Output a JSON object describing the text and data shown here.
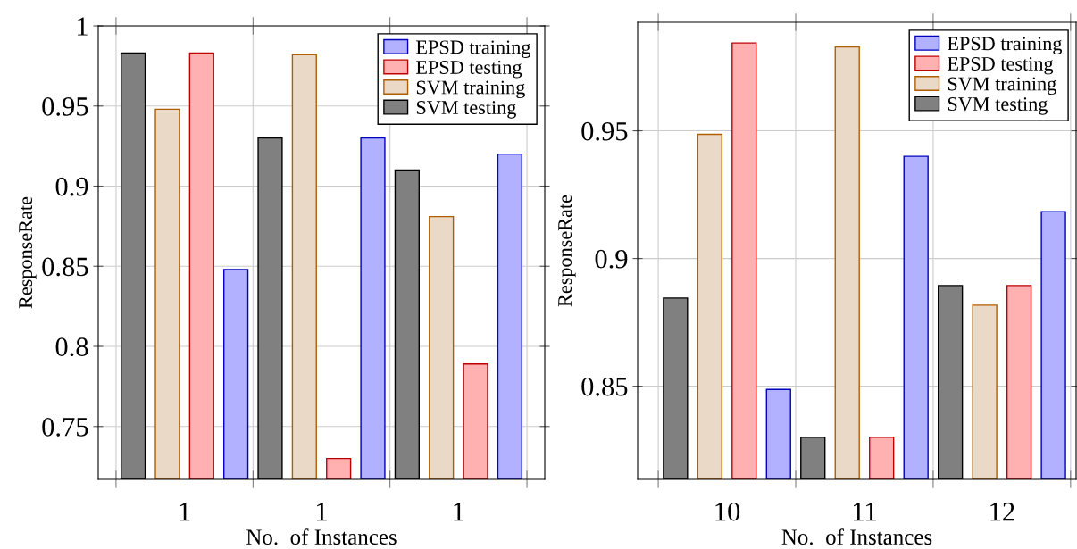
{
  "chart_data": [
    {
      "type": "bar",
      "xlabel": "No.  of Instances",
      "ylabel": "ResponseRate",
      "categories": [
        "1",
        "1",
        "1"
      ],
      "series": [
        {
          "name": "EPSD training",
          "color": "#b1b1ff",
          "values": [
            0.848,
            0.93,
            0.92
          ]
        },
        {
          "name": "EPSD testing",
          "color": "#ffb1b1",
          "values": [
            0.983,
            0.73,
            0.789
          ]
        },
        {
          "name": "SVM training",
          "color": "#ead9c6",
          "values": [
            0.948,
            0.982,
            0.881
          ]
        },
        {
          "name": "SVM testing",
          "color": "#808080",
          "values": [
            0.983,
            0.93,
            0.91
          ]
        }
      ],
      "ylim": [
        0.717,
        1.0
      ],
      "yticks": [
        0.75,
        0.8,
        0.85,
        0.9,
        0.95,
        1
      ],
      "grid": true,
      "legend": "top right"
    },
    {
      "type": "bar",
      "xlabel": "No.  of Instances",
      "ylabel": "ResponseRate",
      "categories": [
        "10",
        "11",
        "12"
      ],
      "series": [
        {
          "name": "EPSD training",
          "color": "#b1b1ff",
          "values": [
            0.8487,
            0.94,
            0.9183
          ]
        },
        {
          "name": "EPSD testing",
          "color": "#ffb1b1",
          "values": [
            0.9844,
            0.83,
            0.8894
          ]
        },
        {
          "name": "SVM training",
          "color": "#ead9c6",
          "values": [
            0.9486,
            0.9829,
            0.8817
          ]
        },
        {
          "name": "SVM testing",
          "color": "#808080",
          "values": [
            0.8845,
            0.83,
            0.8894
          ]
        }
      ],
      "ylim": [
        0.8135,
        0.9925
      ],
      "yticks": [
        0.85,
        0.9,
        0.95
      ],
      "grid": true,
      "legend": "top right"
    }
  ]
}
